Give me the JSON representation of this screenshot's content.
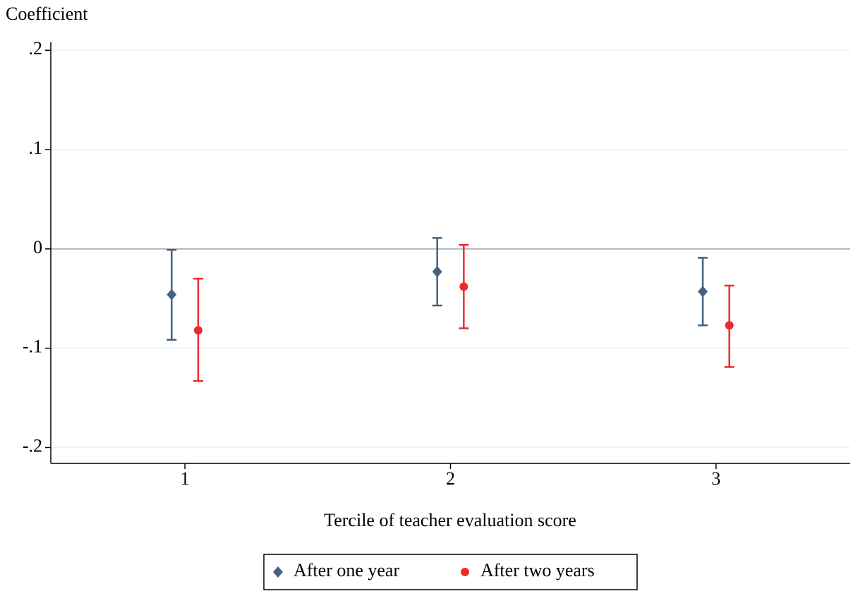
{
  "chart_data": {
    "type": "errorbar",
    "y_label": "Coefficient",
    "x_label": "Tercile of teacher evaluation score",
    "xlim": [
      0.495,
      3.505
    ],
    "xticks": [
      1,
      2,
      3
    ],
    "ylim": [
      -0.216,
      0.208
    ],
    "yticks": [
      {
        "value": -0.2,
        "label": "-.2"
      },
      {
        "value": -0.1,
        "label": "-.1"
      },
      {
        "value": 0,
        "label": "0"
      },
      {
        "value": 0.1,
        "label": ".1"
      },
      {
        "value": 0.2,
        "label": ".2"
      }
    ],
    "grid": true,
    "reference_line": 0,
    "legend": "bottom",
    "series": [
      {
        "name": "After one year",
        "color": "#44617f",
        "marker": "diamond",
        "x": [
          0.95,
          1.95,
          2.95
        ],
        "values": [
          -0.046,
          -0.023,
          -0.043
        ],
        "lower": [
          -0.0915,
          -0.057,
          -0.077
        ],
        "upper": [
          -0.001,
          0.011,
          -0.009
        ]
      },
      {
        "name": "After two years",
        "color": "#ee2a2e",
        "marker": "circle",
        "x": [
          1.05,
          2.05,
          3.05
        ],
        "values": [
          -0.082,
          -0.038,
          -0.077
        ],
        "lower": [
          -0.133,
          -0.08,
          -0.119
        ],
        "upper": [
          -0.03,
          0.004,
          -0.037
        ]
      }
    ]
  }
}
